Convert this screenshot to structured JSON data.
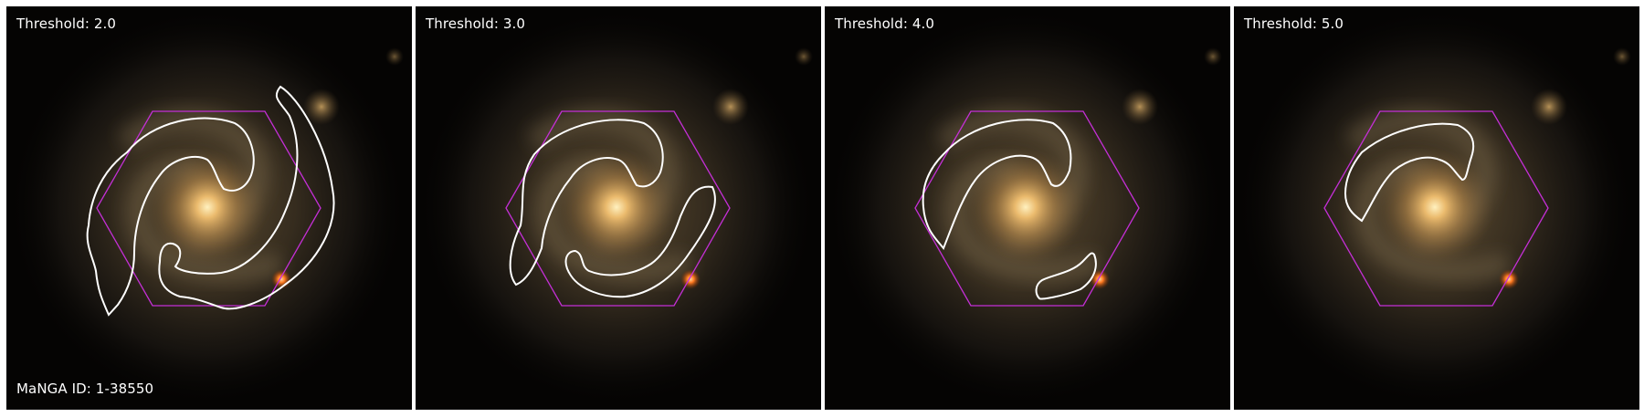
{
  "panels": [
    {
      "threshold_label": "Threshold: 2.0"
    },
    {
      "threshold_label": "Threshold: 3.0"
    },
    {
      "threshold_label": "Threshold: 4.0"
    },
    {
      "threshold_label": "Threshold: 5.0"
    }
  ],
  "manga_id_label": "MaNGA ID: 1-38550",
  "colors": {
    "hexagon": "#c42fd6",
    "contour": "#ffffff",
    "background": "#050403",
    "galaxy_core": "#ffd890",
    "foreground_star": "#ff7a20"
  }
}
